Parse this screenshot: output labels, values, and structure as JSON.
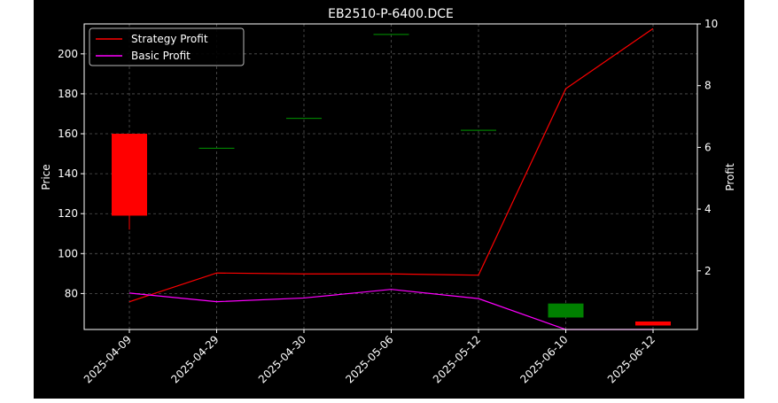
{
  "chart_data": {
    "type": "candlestick+line",
    "title": "EB2510-P-6400.DCE",
    "xlabel": "",
    "ylabel_left": "Price",
    "ylabel_right": "Profit",
    "categories": [
      "2025-04-09",
      "2025-04-29",
      "2025-04-30",
      "2025-05-06",
      "2025-05-12",
      "2025-06-10",
      "2025-06-12"
    ],
    "ylim_left": [
      62,
      215
    ],
    "yticks_left": [
      80,
      100,
      120,
      140,
      160,
      180,
      200
    ],
    "ylim_right": [
      0.1,
      10.0
    ],
    "yticks_right": [
      2,
      4,
      6,
      8,
      10
    ],
    "grid": true,
    "legend_position": "top-left",
    "candles": [
      {
        "date": "2025-04-09",
        "open": 160,
        "close": 119,
        "high": 160,
        "low": 112
      },
      {
        "date": "2025-04-29",
        "open": 153,
        "close": 153,
        "high": 153,
        "low": 153
      },
      {
        "date": "2025-04-30",
        "open": 168,
        "close": 168,
        "high": 168,
        "low": 168
      },
      {
        "date": "2025-05-06",
        "open": 210,
        "close": 210,
        "high": 210,
        "low": 210
      },
      {
        "date": "2025-05-12",
        "open": 162,
        "close": 162,
        "high": 162,
        "low": 162
      },
      {
        "date": "2025-06-10",
        "open": 68,
        "close": 75,
        "high": 75,
        "low": 68
      },
      {
        "date": "2025-06-12",
        "open": 66,
        "close": 64,
        "high": 66,
        "low": 64
      }
    ],
    "series": [
      {
        "name": "Strategy Profit",
        "color": "#ff0000",
        "values": [
          1.0,
          1.93,
          1.9,
          1.9,
          1.86,
          7.9,
          9.85
        ]
      },
      {
        "name": "Basic Profit",
        "color": "#ff00ff",
        "values": [
          1.28,
          1.0,
          1.12,
          1.4,
          1.1,
          0.1,
          0.1
        ]
      }
    ],
    "colors": {
      "up": "#008000",
      "down": "#ff0000",
      "background": "#000000",
      "grid": "#555555"
    }
  }
}
